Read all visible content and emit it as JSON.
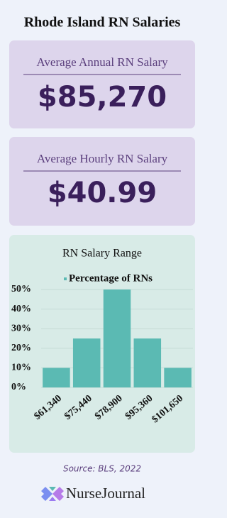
{
  "header": {
    "title": "Rhode Island RN Salaries"
  },
  "cards": [
    {
      "label": "Average Annual RN Salary",
      "value": "$85,270"
    },
    {
      "label": "Average Hourly RN Salary",
      "value": "$40.99"
    }
  ],
  "chart_data": {
    "type": "bar",
    "title": "RN Salary Range",
    "categories": [
      "$61,340",
      "$75,440",
      "$78,900",
      "$95,360",
      "$101,650"
    ],
    "series": [
      {
        "name": "Percentage of RNs",
        "color": "#5bbab3",
        "values": [
          10,
          25,
          50,
          25,
          10
        ]
      }
    ],
    "ylim": [
      0,
      50
    ],
    "yticks": [
      {
        "value": 0,
        "label": "0%"
      },
      {
        "value": 10,
        "label": "10%"
      },
      {
        "value": 20,
        "label": "20%"
      },
      {
        "value": 30,
        "label": "30%"
      },
      {
        "value": 40,
        "label": "40%"
      },
      {
        "value": 50,
        "label": "50%"
      }
    ],
    "grid": true,
    "legend": "top"
  },
  "footer": {
    "source": "Source: BLS, 2022",
    "brand": "NurseJournal"
  }
}
